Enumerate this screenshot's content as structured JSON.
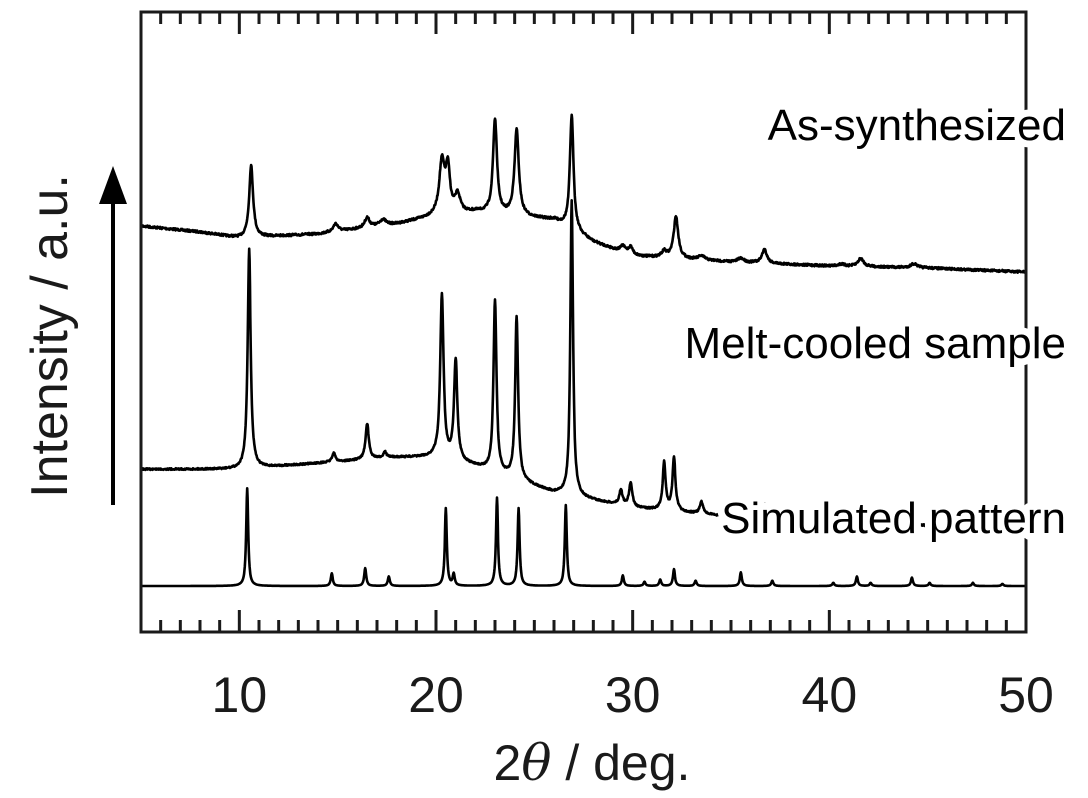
{
  "chart_data": {
    "type": "line",
    "xlabel_prefix": "2",
    "xlabel_symbol": "θ",
    "xlabel_suffix": " / deg.",
    "ylabel": "Intensity / a.u.",
    "xlim": [
      5,
      50
    ],
    "x_ticks": [
      10,
      20,
      30,
      40,
      50
    ],
    "x_tick_labels": [
      "10",
      "20",
      "30",
      "40",
      "50"
    ],
    "x_minor_step": 1,
    "y_ticks_shown": false,
    "grid": false,
    "legend": "none",
    "series": [
      {
        "name": "As-synthesized",
        "baseline": [
          [
            5,
            0.66
          ],
          [
            8,
            0.63
          ],
          [
            10,
            0.6
          ],
          [
            14,
            0.62
          ],
          [
            18,
            0.67
          ],
          [
            20,
            0.71
          ],
          [
            22,
            0.73
          ],
          [
            26,
            0.69
          ],
          [
            28,
            0.58
          ],
          [
            30,
            0.51
          ],
          [
            35,
            0.48
          ],
          [
            40,
            0.46
          ],
          [
            45,
            0.45
          ],
          [
            50,
            0.43
          ]
        ],
        "peaks": [
          [
            10.6,
            0.36,
            0.12
          ],
          [
            14.9,
            0.04,
            0.15
          ],
          [
            16.5,
            0.05,
            0.15
          ],
          [
            17.3,
            0.03,
            0.2
          ],
          [
            20.3,
            0.26,
            0.16
          ],
          [
            20.6,
            0.22,
            0.13
          ],
          [
            21.1,
            0.09,
            0.16
          ],
          [
            23.0,
            0.47,
            0.12
          ],
          [
            24.1,
            0.43,
            0.13
          ],
          [
            26.9,
            0.57,
            0.11
          ],
          [
            29.5,
            0.03,
            0.15
          ],
          [
            29.9,
            0.04,
            0.15
          ],
          [
            31.6,
            0.03,
            0.15
          ],
          [
            32.2,
            0.21,
            0.14
          ],
          [
            33.5,
            0.02,
            0.2
          ],
          [
            35.5,
            0.02,
            0.2
          ],
          [
            36.7,
            0.07,
            0.15
          ],
          [
            40.6,
            0.01,
            0.2
          ],
          [
            41.6,
            0.04,
            0.18
          ],
          [
            44.3,
            0.02,
            0.2
          ]
        ]
      },
      {
        "name": "Melt-cooled sample",
        "baseline": [
          [
            5,
            0.3
          ],
          [
            10,
            0.3
          ],
          [
            14,
            0.32
          ],
          [
            18,
            0.34
          ],
          [
            20,
            0.34
          ],
          [
            22,
            0.31
          ],
          [
            26,
            0.22
          ],
          [
            30,
            0.17
          ],
          [
            35,
            0.14
          ],
          [
            40,
            0.12
          ],
          [
            45,
            0.11
          ],
          [
            50,
            0.1
          ]
        ],
        "peaks": [
          [
            10.5,
            0.74,
            0.09
          ],
          [
            14.8,
            0.03,
            0.1
          ],
          [
            16.5,
            0.12,
            0.1
          ],
          [
            17.4,
            0.02,
            0.1
          ],
          [
            20.3,
            0.55,
            0.1
          ],
          [
            21.0,
            0.34,
            0.1
          ],
          [
            23.0,
            0.58,
            0.09
          ],
          [
            24.1,
            0.55,
            0.09
          ],
          [
            26.9,
            1.0,
            0.08
          ],
          [
            29.4,
            0.05,
            0.1
          ],
          [
            29.9,
            0.08,
            0.1
          ],
          [
            31.6,
            0.16,
            0.09
          ],
          [
            32.1,
            0.18,
            0.09
          ],
          [
            33.5,
            0.04,
            0.1
          ],
          [
            35.5,
            0.03,
            0.1
          ],
          [
            36.7,
            0.05,
            0.1
          ],
          [
            40.5,
            0.04,
            0.1
          ],
          [
            41.6,
            0.05,
            0.1
          ],
          [
            44.3,
            0.02,
            0.1
          ],
          [
            47.5,
            0.01,
            0.1
          ]
        ]
      },
      {
        "name": "Simulated pattern",
        "baseline": [
          [
            5,
            0
          ],
          [
            50,
            0
          ]
        ],
        "peaks": [
          [
            10.4,
            0.93,
            0.06
          ],
          [
            14.7,
            0.12,
            0.06
          ],
          [
            16.4,
            0.17,
            0.06
          ],
          [
            17.6,
            0.09,
            0.06
          ],
          [
            20.5,
            0.74,
            0.06
          ],
          [
            20.9,
            0.11,
            0.06
          ],
          [
            23.1,
            0.84,
            0.06
          ],
          [
            24.2,
            0.74,
            0.06
          ],
          [
            26.6,
            0.77,
            0.06
          ],
          [
            29.5,
            0.1,
            0.06
          ],
          [
            30.6,
            0.04,
            0.06
          ],
          [
            31.4,
            0.06,
            0.06
          ],
          [
            32.1,
            0.16,
            0.06
          ],
          [
            33.2,
            0.05,
            0.06
          ],
          [
            35.5,
            0.13,
            0.06
          ],
          [
            37.1,
            0.05,
            0.06
          ],
          [
            40.2,
            0.03,
            0.06
          ],
          [
            41.4,
            0.09,
            0.06
          ],
          [
            42.1,
            0.03,
            0.06
          ],
          [
            44.2,
            0.08,
            0.06
          ],
          [
            45.1,
            0.03,
            0.06
          ],
          [
            47.3,
            0.03,
            0.06
          ],
          [
            48.8,
            0.02,
            0.06
          ]
        ]
      }
    ]
  }
}
